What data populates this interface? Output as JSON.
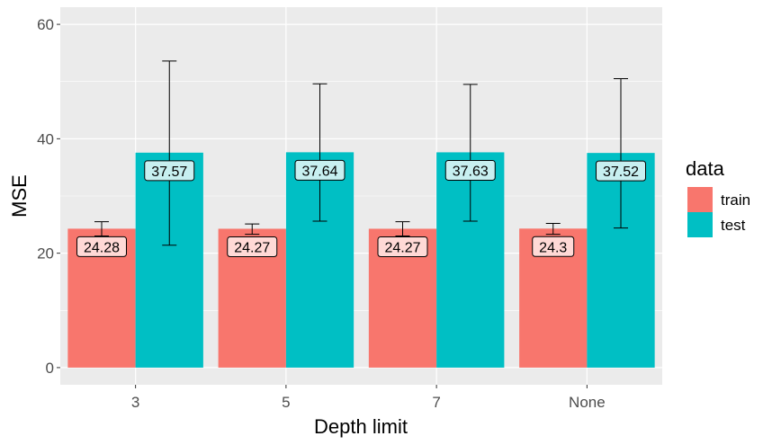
{
  "chart_data": {
    "type": "bar",
    "title": "",
    "xlabel": "Depth limit",
    "ylabel": "MSE",
    "categories": [
      "3",
      "5",
      "7",
      "None"
    ],
    "ylim": [
      -3,
      63
    ],
    "yticks": [
      0,
      20,
      40,
      60
    ],
    "grid": true,
    "legend": {
      "title": "data",
      "position": "right"
    },
    "series": [
      {
        "name": "train",
        "color": "#F8766D",
        "label_fill": "#FFD9D6",
        "values": [
          24.28,
          24.27,
          24.27,
          24.3
        ],
        "labels": [
          "24.28",
          "24.27",
          "24.27",
          "24.3"
        ],
        "error_low": [
          23.0,
          23.3,
          23.0,
          23.3
        ],
        "error_high": [
          25.5,
          25.1,
          25.5,
          25.2
        ]
      },
      {
        "name": "test",
        "color": "#00BFC4",
        "label_fill": "#C7EFF0",
        "values": [
          37.57,
          37.64,
          37.63,
          37.52
        ],
        "labels": [
          "37.57",
          "37.64",
          "37.63",
          "37.52"
        ],
        "error_low": [
          21.4,
          25.6,
          25.6,
          24.4
        ],
        "error_high": [
          53.6,
          49.6,
          49.5,
          50.5
        ]
      }
    ]
  }
}
